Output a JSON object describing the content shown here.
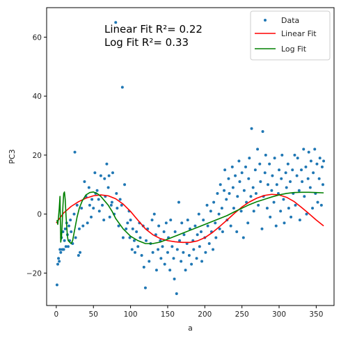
{
  "chart_data": {
    "type": "scatter",
    "xlabel": "a",
    "ylabel": "PC3",
    "xlim": [
      -13,
      374
    ],
    "ylim": [
      -31,
      70
    ],
    "xticks": [
      0,
      50,
      100,
      150,
      200,
      250,
      300,
      350
    ],
    "yticks": [
      -20,
      0,
      20,
      40,
      60
    ],
    "grid": false,
    "legend_position": "top-right",
    "annotations": [
      "Linear Fit R²= 0.22",
      "Log Fit R²= 0.33"
    ],
    "colors": {
      "data": "#1f77b4",
      "linear": "#ff0000",
      "log": "#008000"
    },
    "series": [
      {
        "name": "Data",
        "kind": "scatter",
        "points": [
          [
            1,
            -24
          ],
          [
            2,
            -17
          ],
          [
            3,
            -15
          ],
          [
            4,
            -16
          ],
          [
            5,
            -12
          ],
          [
            6,
            -13
          ],
          [
            7,
            -8
          ],
          [
            8,
            -12
          ],
          [
            9,
            -6
          ],
          [
            10,
            -12
          ],
          [
            11,
            -9
          ],
          [
            12,
            -5
          ],
          [
            13,
            -11
          ],
          [
            14,
            -3
          ],
          [
            15,
            -7
          ],
          [
            16,
            -11
          ],
          [
            17,
            -4
          ],
          [
            18,
            -9
          ],
          [
            19,
            -2
          ],
          [
            20,
            -6
          ],
          [
            22,
            -10
          ],
          [
            24,
            0
          ],
          [
            25,
            21
          ],
          [
            26,
            -8
          ],
          [
            28,
            3
          ],
          [
            30,
            -14
          ],
          [
            31,
            -5
          ],
          [
            32,
            -13
          ],
          [
            34,
            2
          ],
          [
            36,
            -4
          ],
          [
            38,
            11
          ],
          [
            40,
            6
          ],
          [
            42,
            -3
          ],
          [
            44,
            9
          ],
          [
            45,
            3
          ],
          [
            47,
            -1
          ],
          [
            48,
            5
          ],
          [
            50,
            2
          ],
          [
            52,
            14
          ],
          [
            53,
            7
          ],
          [
            55,
            8
          ],
          [
            57,
            5
          ],
          [
            58,
            1
          ],
          [
            60,
            13
          ],
          [
            62,
            3
          ],
          [
            64,
            -2
          ],
          [
            65,
            12
          ],
          [
            66,
            6
          ],
          [
            68,
            17
          ],
          [
            70,
            9
          ],
          [
            71,
            13
          ],
          [
            72,
            -1
          ],
          [
            74,
            3
          ],
          [
            75,
            4
          ],
          [
            76,
            14
          ],
          [
            78,
            0
          ],
          [
            80,
            65
          ],
          [
            81,
            7
          ],
          [
            82,
            2
          ],
          [
            84,
            -4
          ],
          [
            86,
            5
          ],
          [
            88,
            3
          ],
          [
            89,
            43
          ],
          [
            90,
            -8
          ],
          [
            92,
            10
          ],
          [
            94,
            -5
          ],
          [
            96,
            -3
          ],
          [
            98,
            1
          ],
          [
            99,
            -8
          ],
          [
            100,
            -2
          ],
          [
            102,
            -12
          ],
          [
            103,
            -5
          ],
          [
            105,
            -9
          ],
          [
            106,
            -13
          ],
          [
            108,
            -6
          ],
          [
            110,
            -11
          ],
          [
            112,
            -3
          ],
          [
            113,
            -8
          ],
          [
            115,
            -14
          ],
          [
            117,
            -4
          ],
          [
            118,
            -18
          ],
          [
            120,
            -25
          ],
          [
            121,
            -9
          ],
          [
            123,
            -5
          ],
          [
            125,
            -16
          ],
          [
            127,
            -10
          ],
          [
            129,
            -2
          ],
          [
            130,
            -13
          ],
          [
            132,
            0
          ],
          [
            134,
            -7
          ],
          [
            135,
            -19
          ],
          [
            137,
            -12
          ],
          [
            138,
            -4
          ],
          [
            140,
            -9
          ],
          [
            141,
            -15
          ],
          [
            143,
            -11
          ],
          [
            145,
            -6
          ],
          [
            146,
            -17
          ],
          [
            148,
            -3
          ],
          [
            150,
            -13
          ],
          [
            151,
            -8
          ],
          [
            153,
            -19
          ],
          [
            154,
            -2
          ],
          [
            156,
            -11
          ],
          [
            158,
            -15
          ],
          [
            159,
            -22
          ],
          [
            160,
            -6
          ],
          [
            162,
            -27
          ],
          [
            163,
            -12
          ],
          [
            165,
            4
          ],
          [
            166,
            -9
          ],
          [
            168,
            -16
          ],
          [
            169,
            -3
          ],
          [
            171,
            -13
          ],
          [
            172,
            -7
          ],
          [
            174,
            -19
          ],
          [
            176,
            -10
          ],
          [
            177,
            -2
          ],
          [
            179,
            -14
          ],
          [
            180,
            -5
          ],
          [
            182,
            -17
          ],
          [
            184,
            -9
          ],
          [
            185,
            -12
          ],
          [
            187,
            -4
          ],
          [
            189,
            -15
          ],
          [
            190,
            -7
          ],
          [
            192,
            0
          ],
          [
            193,
            -11
          ],
          [
            195,
            -6
          ],
          [
            196,
            -16
          ],
          [
            198,
            -2
          ],
          [
            200,
            -8
          ],
          [
            201,
            -13
          ],
          [
            203,
            3
          ],
          [
            204,
            -4
          ],
          [
            206,
            -10
          ],
          [
            208,
            1
          ],
          [
            209,
            -6
          ],
          [
            211,
            -12
          ],
          [
            212,
            4
          ],
          [
            214,
            -3
          ],
          [
            215,
            -8
          ],
          [
            217,
            7
          ],
          [
            219,
            0
          ],
          [
            220,
            -5
          ],
          [
            221,
            10
          ],
          [
            223,
            2
          ],
          [
            224,
            -6
          ],
          [
            226,
            8
          ],
          [
            227,
            15
          ],
          [
            229,
            5
          ],
          [
            230,
            -2
          ],
          [
            232,
            12
          ],
          [
            233,
            7
          ],
          [
            235,
            -4
          ],
          [
            237,
            16
          ],
          [
            238,
            9
          ],
          [
            239,
            2
          ],
          [
            241,
            13
          ],
          [
            243,
            -6
          ],
          [
            244,
            6
          ],
          [
            246,
            18
          ],
          [
            247,
            11
          ],
          [
            249,
            1
          ],
          [
            250,
            14
          ],
          [
            252,
            -8
          ],
          [
            253,
            8
          ],
          [
            255,
            16
          ],
          [
            256,
            4
          ],
          [
            258,
            -3
          ],
          [
            259,
            12
          ],
          [
            260,
            19
          ],
          [
            262,
            6
          ],
          [
            263,
            29
          ],
          [
            265,
            9
          ],
          [
            266,
            1
          ],
          [
            268,
            15
          ],
          [
            269,
            7
          ],
          [
            271,
            22
          ],
          [
            272,
            3
          ],
          [
            274,
            17
          ],
          [
            275,
            11
          ],
          [
            277,
            -5
          ],
          [
            278,
            28
          ],
          [
            279,
            6
          ],
          [
            281,
            14
          ],
          [
            282,
            20
          ],
          [
            284,
            2
          ],
          [
            285,
            10
          ],
          [
            287,
            17
          ],
          [
            288,
            -1
          ],
          [
            290,
            8
          ],
          [
            291,
            13
          ],
          [
            293,
            4
          ],
          [
            294,
            19
          ],
          [
            296,
            -4
          ],
          [
            297,
            10
          ],
          [
            299,
            7
          ],
          [
            300,
            15
          ],
          [
            302,
            1
          ],
          [
            303,
            12
          ],
          [
            304,
            20
          ],
          [
            306,
            5
          ],
          [
            307,
            -3
          ],
          [
            309,
            14
          ],
          [
            310,
            9
          ],
          [
            312,
            17
          ],
          [
            313,
            2
          ],
          [
            315,
            11
          ],
          [
            316,
            -1
          ],
          [
            318,
            15
          ],
          [
            319,
            7
          ],
          [
            321,
            20
          ],
          [
            322,
            3
          ],
          [
            324,
            13
          ],
          [
            325,
            19
          ],
          [
            327,
            8
          ],
          [
            328,
            -2
          ],
          [
            330,
            15
          ],
          [
            331,
            11
          ],
          [
            333,
            22
          ],
          [
            334,
            6
          ],
          [
            336,
            16
          ],
          [
            337,
            0
          ],
          [
            339,
            12
          ],
          [
            340,
            21
          ],
          [
            342,
            9
          ],
          [
            343,
            18
          ],
          [
            345,
            2
          ],
          [
            346,
            14
          ],
          [
            348,
            22
          ],
          [
            349,
            7
          ],
          [
            351,
            17
          ],
          [
            352,
            4
          ],
          [
            354,
            12
          ],
          [
            355,
            19
          ],
          [
            357,
            3
          ],
          [
            358,
            16
          ],
          [
            359,
            10
          ],
          [
            360,
            18
          ]
        ]
      },
      {
        "name": "Linear Fit",
        "kind": "line",
        "x": [
          0,
          10,
          20,
          30,
          40,
          50,
          60,
          70,
          80,
          90,
          100,
          110,
          120,
          130,
          140,
          150,
          160,
          170,
          180,
          190,
          200,
          210,
          220,
          230,
          240,
          250,
          260,
          270,
          280,
          290,
          300,
          310,
          320,
          330,
          340,
          350,
          360
        ],
        "y": [
          -3.0,
          0.4,
          2.6,
          4.2,
          5.4,
          6.2,
          6.5,
          6.2,
          5.2,
          3.4,
          0.9,
          -2.1,
          -5.0,
          -7.0,
          -8.3,
          -9.0,
          -9.4,
          -9.6,
          -9.6,
          -9.1,
          -8.0,
          -6.3,
          -4.2,
          -2.0,
          0.3,
          2.4,
          4.1,
          5.4,
          6.3,
          6.7,
          6.5,
          5.7,
          4.3,
          2.3,
          0.2,
          -2.0,
          -4.0
        ]
      },
      {
        "name": "Log Fit",
        "kind": "line",
        "x": [
          1,
          2,
          3,
          4,
          5,
          6,
          7,
          8,
          9,
          10,
          11,
          12,
          13,
          14,
          15,
          16,
          18,
          20,
          22,
          25,
          28,
          31,
          35,
          40,
          45,
          50,
          55,
          60,
          65,
          70,
          75,
          80,
          90,
          100,
          110,
          120,
          130,
          140,
          150,
          160,
          170,
          180,
          190,
          200,
          210,
          220,
          230,
          240,
          250,
          260,
          270,
          280,
          290,
          300,
          310,
          320,
          330,
          340,
          350,
          360
        ],
        "y": [
          -2.0,
          -3.5,
          -1.0,
          2.0,
          6.0,
          -9.5,
          -8.0,
          -3.0,
          3.0,
          7.0,
          7.5,
          5.0,
          0.0,
          -4.0,
          -7.5,
          -9.0,
          -9.5,
          -10.0,
          -9.0,
          -5.0,
          -1.0,
          2.0,
          4.5,
          6.5,
          7.3,
          7.5,
          7.0,
          6.0,
          4.5,
          3.0,
          1.0,
          -1.5,
          -5.0,
          -7.5,
          -9.0,
          -10.0,
          -10.0,
          -9.5,
          -8.5,
          -7.5,
          -6.5,
          -5.5,
          -4.5,
          -3.5,
          -2.5,
          -1.5,
          -0.5,
          0.8,
          2.0,
          3.2,
          4.2,
          5.0,
          5.8,
          6.5,
          7.0,
          7.3,
          7.4,
          7.4,
          7.3,
          7.2
        ]
      }
    ]
  }
}
